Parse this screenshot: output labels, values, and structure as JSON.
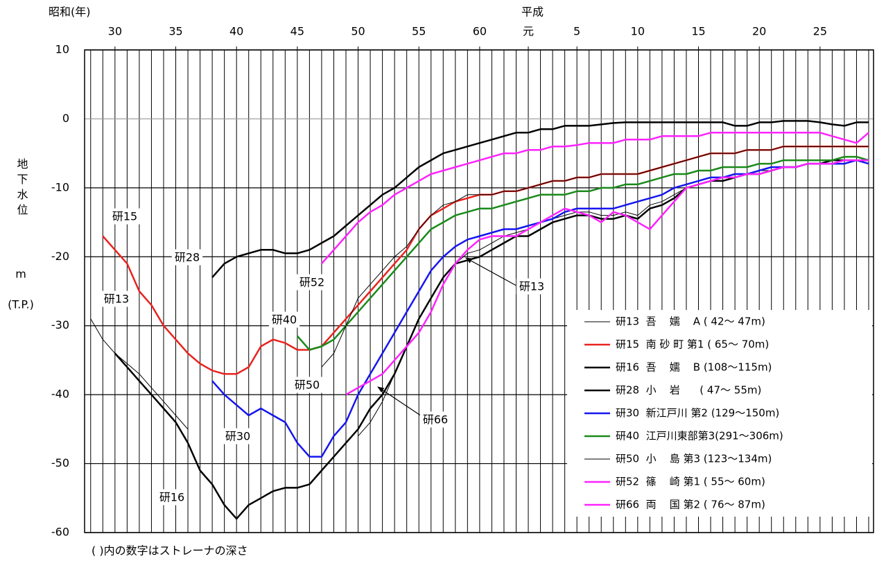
{
  "chart_data": {
    "type": "line",
    "x_era_labels": [
      "昭和(年)",
      "平成"
    ],
    "ylabel": "地下水位",
    "yunit": "m",
    "ydatum": "(T.P.)",
    "footnote": "( )内の数字はストレーナの深さ",
    "xlim": [
      27.5,
      92.4
    ],
    "xticks": [
      30,
      35,
      40,
      45,
      50,
      55,
      60,
      {
        "value": 64,
        "label": "元"
      },
      {
        "value": 68,
        "label": "5"
      },
      {
        "value": 73,
        "label": "10"
      },
      {
        "value": 78,
        "label": "15"
      },
      {
        "value": 83,
        "label": "20"
      },
      {
        "value": 88,
        "label": "25"
      }
    ],
    "ylim": [
      -60,
      10
    ],
    "yticks": [
      10,
      0,
      -10,
      -20,
      -30,
      -40,
      -50,
      -60
    ],
    "grid": true,
    "legend": "lower right",
    "annotations": [
      "研15",
      "研28",
      "研13",
      "研52",
      "研40",
      "研50",
      "研30",
      "研16",
      "研13",
      "研66"
    ],
    "x": [
      28,
      29,
      30,
      31,
      32,
      33,
      34,
      35,
      36,
      37,
      38,
      39,
      40,
      41,
      42,
      43,
      44,
      45,
      46,
      47,
      48,
      49,
      50,
      51,
      52,
      53,
      54,
      55,
      56,
      57,
      58,
      59,
      60,
      61,
      62,
      63,
      64,
      65,
      66,
      67,
      68,
      69,
      70,
      71,
      72,
      73,
      74,
      75,
      76,
      77,
      78,
      79,
      80,
      81,
      82,
      83,
      84,
      85,
      86,
      87,
      88,
      89,
      90,
      91,
      92
    ],
    "series": [
      {
        "name": "研13  吾    嬬    A ( 42～ 47m)",
        "color": "#000000",
        "line_width": 1,
        "values": [
          -29,
          -32,
          -34,
          -35.5,
          -37,
          -39,
          -41,
          -43,
          -45,
          null,
          null,
          null,
          null,
          null,
          null,
          null,
          null,
          null,
          null,
          null,
          null,
          null,
          -46,
          -44,
          -41,
          -37,
          -33,
          -29,
          -26,
          -23,
          -21,
          -19.5,
          -19,
          -18,
          -17,
          -16.5,
          -16,
          -15,
          -14.5,
          -14,
          -13.5,
          -13.5,
          -14,
          -14,
          -13.5,
          -14,
          -12.5,
          -12,
          -11,
          -10,
          -9.5,
          -9,
          -8.5,
          -8,
          -8,
          -7.5,
          -7.5,
          -7,
          -7,
          -6.5,
          -6.5,
          -6,
          -6,
          -6,
          -6
        ]
      },
      {
        "name": "研15  南 砂 町 第1 ( 65～ 70m)",
        "color": "#e8231e",
        "line_width": 2.5,
        "values": [
          null,
          -17,
          -19,
          -21,
          -25,
          -27,
          -30,
          -32,
          -34,
          -35.5,
          -36.5,
          -37,
          -37,
          -36,
          -33,
          -32,
          -32.5,
          -33.5,
          -33.5,
          -33,
          -31,
          -29,
          -27,
          -25,
          -23,
          -21,
          -19,
          -16,
          -14,
          -13,
          -12,
          -11.5,
          -11,
          -11,
          -10.5,
          -10.5,
          -10,
          -9.5,
          -9,
          -9,
          -8.5,
          -8.5,
          -8,
          -8,
          -8,
          -8,
          -7.5,
          -7,
          -6.5,
          -6,
          -5.5,
          -5,
          -5,
          -5,
          -4.5,
          -4.5,
          -4.5,
          -4,
          -4,
          -4,
          -4,
          -4,
          -4,
          -4,
          -4
        ]
      },
      {
        "name": "研16  吾    嬬    B (108～115m)",
        "color": "#000000",
        "line_width": 2.5,
        "values": [
          null,
          null,
          -34,
          -36,
          -38,
          -40,
          -42,
          -44,
          -47,
          -51,
          -53,
          -56,
          -58,
          -56,
          -55,
          -54,
          -53.5,
          -53.5,
          -53,
          -51,
          -49,
          -47,
          -45,
          -42,
          -40,
          -37,
          -33,
          -29,
          -26,
          -23,
          -21,
          -20.5,
          -20,
          -19,
          -18,
          -17,
          -17,
          -16,
          -15,
          -14.5,
          -14,
          -14,
          -14.5,
          -14.5,
          -14,
          -14.5,
          -13,
          -12.5,
          -11.5,
          -10,
          -9.5,
          -9,
          -9,
          -8.5,
          -8,
          -8,
          -7.5,
          -7,
          -7,
          -6.5,
          -6.5,
          -6,
          -6,
          -6,
          -6
        ]
      },
      {
        "name": "研28  小    岩      ( 47～ 55m)",
        "color": "#000000",
        "line_width": 2.5,
        "values": [
          null,
          null,
          null,
          null,
          null,
          null,
          null,
          null,
          null,
          null,
          -23,
          -21,
          -20,
          -19.5,
          -19,
          -19,
          -19.5,
          -19.5,
          -19,
          -18,
          -17,
          -15.5,
          -14,
          -12.5,
          -11,
          -10,
          -8.5,
          -7,
          -6,
          -5,
          -4.5,
          -4,
          -3.5,
          -3,
          -2.5,
          -2,
          -2,
          -1.5,
          -1.5,
          -1,
          -1,
          -1,
          -0.8,
          -0.6,
          -0.5,
          -0.5,
          -0.5,
          -0.5,
          -0.5,
          -0.5,
          -0.5,
          -0.5,
          -0.5,
          -1,
          -1,
          -0.5,
          -0.5,
          -0.3,
          -0.3,
          -0.3,
          -0.5,
          -0.8,
          -1,
          -0.5,
          -0.5
        ]
      },
      {
        "name": "研30  新江戸川 第2 (129～150m)",
        "color": "#1515f0",
        "line_width": 2.5,
        "values": [
          null,
          null,
          null,
          null,
          null,
          null,
          null,
          null,
          null,
          null,
          -38,
          -40,
          -41.5,
          -43,
          -42,
          -43,
          -44,
          -47,
          -49,
          -49,
          -46,
          -44,
          -40,
          -37,
          -34,
          -31,
          -28,
          -25,
          -22,
          -20,
          -18.5,
          -17.5,
          -17,
          -16.5,
          -16,
          -16,
          -15.5,
          -15,
          -14.5,
          -13.5,
          -13,
          -13,
          -13,
          -13,
          -12.5,
          -12,
          -11.5,
          -11,
          -10,
          -9.5,
          -9,
          -8.5,
          -8.5,
          -8,
          -8,
          -7.5,
          -7,
          -7,
          -7,
          -6.5,
          -6.5,
          -6.5,
          -6.5,
          -6,
          -6.5
        ]
      },
      {
        "name": "研40  江戸川東部第3(291～306m)",
        "color": "#1a8a1a",
        "line_width": 2.5,
        "values": [
          null,
          null,
          null,
          null,
          null,
          null,
          null,
          null,
          null,
          null,
          null,
          null,
          null,
          null,
          null,
          null,
          null,
          -31.5,
          -33.5,
          -33,
          -32,
          -30,
          -28,
          -26,
          -24,
          -22,
          -20,
          -18,
          -16,
          -15,
          -14,
          -13.5,
          -13,
          -13,
          -12.5,
          -12,
          -11.5,
          -11,
          -11,
          -11,
          -10.5,
          -10.5,
          -10,
          -10,
          -9.5,
          -9.5,
          -9,
          -8.5,
          -8,
          -8,
          -7.5,
          -7.5,
          -7,
          -7,
          -7,
          -6.5,
          -6.5,
          -6,
          -6,
          -6,
          -6,
          -6,
          -5.5,
          -5.5,
          -6
        ]
      },
      {
        "name": "研50  小    島 第3 (123～134m)",
        "color": "#000000",
        "line_width": 1,
        "values": [
          null,
          null,
          null,
          null,
          null,
          null,
          null,
          null,
          null,
          null,
          null,
          null,
          null,
          null,
          null,
          null,
          null,
          null,
          null,
          -36,
          -34,
          -30,
          -26,
          -24,
          -22,
          -20,
          -18.5,
          -16,
          -14,
          -12.5,
          -12,
          -11,
          -11,
          -11,
          -10.5,
          -10.5,
          -10,
          -9.5,
          -9,
          -9,
          -8.5,
          -8.5,
          -8,
          -8,
          -8,
          -8,
          -7.5,
          -7,
          -6.5,
          -6,
          -5.5,
          -5,
          -5,
          -5,
          -4.5,
          -4.5,
          -4.5,
          -4,
          -4,
          -4,
          -4,
          -4,
          -4,
          -4,
          -4
        ]
      },
      {
        "name": "研52  篠    崎 第1 ( 55～ 60m)",
        "color": "#ff22ff",
        "line_width": 2.5,
        "values": [
          null,
          null,
          null,
          null,
          null,
          null,
          null,
          null,
          null,
          null,
          null,
          null,
          null,
          null,
          null,
          null,
          null,
          null,
          null,
          -21,
          -19,
          -17,
          -15,
          -13.5,
          -12.5,
          -11,
          -10,
          -9,
          -8,
          -7.5,
          -7,
          -6.5,
          -6,
          -5.5,
          -5,
          -5,
          -4.5,
          -4.5,
          -4,
          -4,
          -3.8,
          -3.5,
          -3.5,
          -3.5,
          -3,
          -3,
          -3,
          -2.5,
          -2.5,
          -2.5,
          -2.5,
          -2,
          -2,
          -2,
          -2,
          -2,
          -2,
          -2,
          -2,
          -2,
          -2,
          -2.5,
          -3,
          -3.5,
          -2
        ]
      },
      {
        "name": "研66  両    国 第2 ( 76～ 87m)",
        "color": "#ff22ff",
        "line_width": 2.5,
        "values": [
          null,
          null,
          null,
          null,
          null,
          null,
          null,
          null,
          null,
          null,
          null,
          null,
          null,
          null,
          null,
          null,
          null,
          null,
          null,
          null,
          null,
          -40,
          -39,
          -38,
          -37,
          -35,
          -33,
          -31,
          -28,
          -24,
          -21,
          -19,
          -17.5,
          -17,
          -17,
          -17,
          -16,
          -15,
          -14,
          -13,
          -13.5,
          -14,
          -15,
          -13.5,
          -14,
          -15,
          -16,
          -14,
          -12,
          -10,
          -9.5,
          -9,
          -8.5,
          -8.5,
          -8,
          -8,
          -7.5,
          -7,
          -7,
          -6.5,
          -6.5,
          -6.5,
          -6,
          -6,
          -6
        ]
      }
    ]
  }
}
